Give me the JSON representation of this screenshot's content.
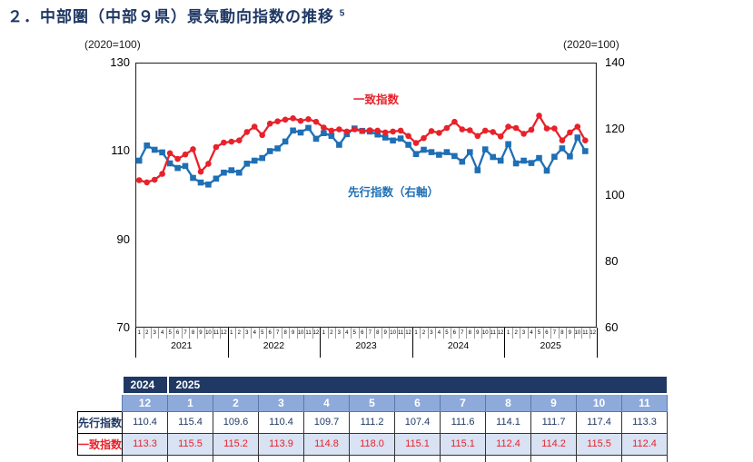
{
  "title": {
    "text": "２．中部圏（中部９県）景気動向指数の推移",
    "superscript": "5"
  },
  "left_axis_caption": "(2020=100)",
  "right_axis_caption": "(2020=100)",
  "legend": {
    "coincident_label": "一致指数",
    "leading_label": "先行指数（右軸）"
  },
  "colors": {
    "coincident_red": "#e8212a",
    "leading_blue": "#1f6fb5",
    "navy": "#1f3864",
    "month_row_bg": "#8eaadb",
    "coincident_row_bg": "#d9e2f3",
    "plot_border": "#333333"
  },
  "chart_data": {
    "type": "line",
    "title": "中部圏（中部９県）景気動向指数の推移",
    "years": [
      "2021",
      "2022",
      "2023",
      "2024",
      "2025"
    ],
    "months_per_year": [
      "1",
      "2",
      "3",
      "4",
      "5",
      "6",
      "7",
      "8",
      "9",
      "10",
      "11",
      "12"
    ],
    "left_axis": {
      "min": 70,
      "max": 130,
      "ticks": [
        "130",
        "110",
        "90",
        "70"
      ],
      "tick_values": [
        130,
        110,
        90,
        70
      ]
    },
    "right_axis": {
      "min": 60,
      "max": 140,
      "ticks": [
        "140",
        "120",
        "100",
        "80",
        "60"
      ],
      "tick_values": [
        140,
        120,
        100,
        80,
        60
      ]
    },
    "grid": false,
    "legend_position": "inside-plot-text-labels",
    "series": [
      {
        "name": "一致指数",
        "axis": "left",
        "marker": "circle",
        "color": "#e8212a",
        "start": "2021-01",
        "values": [
          103.4,
          102.9,
          103.5,
          104.8,
          109.5,
          108.2,
          109.2,
          110.4,
          105.3,
          107.1,
          110.9,
          111.9,
          112.1,
          112.4,
          114.3,
          115.5,
          113.6,
          116.2,
          116.7,
          117.1,
          117.4,
          116.8,
          117.2,
          116.6,
          115.3,
          114.6,
          114.9,
          114.4,
          114.9,
          114.5,
          114.7,
          114.6,
          114.2,
          114.4,
          114.6,
          113.4,
          111.8,
          112.9,
          114.5,
          114.1,
          115.2,
          116.6,
          114.9,
          114.7,
          113.4,
          114.6,
          114.3,
          113.3,
          115.5,
          115.2,
          113.9,
          114.8,
          118.0,
          115.1,
          115.1,
          112.4,
          114.2,
          115.5,
          112.4
        ]
      },
      {
        "name": "先行指数（右軸）",
        "axis": "right",
        "marker": "square",
        "color": "#1f6fb5",
        "start": "2021-01",
        "values": [
          110.4,
          115.0,
          113.7,
          112.9,
          109.6,
          108.2,
          108.8,
          105.2,
          103.8,
          103.2,
          105.0,
          106.8,
          107.5,
          106.8,
          109.5,
          110.4,
          111.2,
          113.3,
          114.1,
          116.2,
          119.5,
          118.9,
          120.3,
          117.0,
          118.7,
          117.9,
          115.2,
          118.4,
          120.1,
          119.4,
          119.2,
          118.3,
          117.4,
          116.5,
          117.1,
          115.2,
          112.4,
          113.7,
          113.0,
          112.2,
          113.0,
          111.8,
          110.1,
          113.0,
          107.5,
          113.8,
          111.5,
          110.4,
          115.4,
          109.6,
          110.4,
          109.7,
          111.2,
          107.4,
          111.6,
          114.1,
          111.7,
          117.4,
          113.3
        ]
      }
    ]
  },
  "table": {
    "year_header": [
      {
        "label": "2024",
        "span": 1
      },
      {
        "label": "2025",
        "span": 11
      }
    ],
    "month_header": [
      "12",
      "1",
      "2",
      "3",
      "4",
      "5",
      "6",
      "7",
      "8",
      "9",
      "10",
      "11"
    ],
    "rows": [
      {
        "key": "leading",
        "label": "先行指数",
        "label_color": "#1f3864",
        "value_color": "#1f3864",
        "bg": "#ffffff",
        "values": [
          "110.4",
          "115.4",
          "109.6",
          "110.4",
          "109.7",
          "111.2",
          "107.4",
          "111.6",
          "114.1",
          "111.7",
          "117.4",
          "113.3"
        ]
      },
      {
        "key": "coincident",
        "label": "一致指数",
        "label_color": "#e8212a",
        "value_color": "#e8212a",
        "bg": "#d9e2f3",
        "values": [
          "113.3",
          "115.5",
          "115.2",
          "113.9",
          "114.8",
          "118.0",
          "115.1",
          "115.1",
          "112.4",
          "114.2",
          "115.5",
          "112.4"
        ]
      }
    ]
  }
}
